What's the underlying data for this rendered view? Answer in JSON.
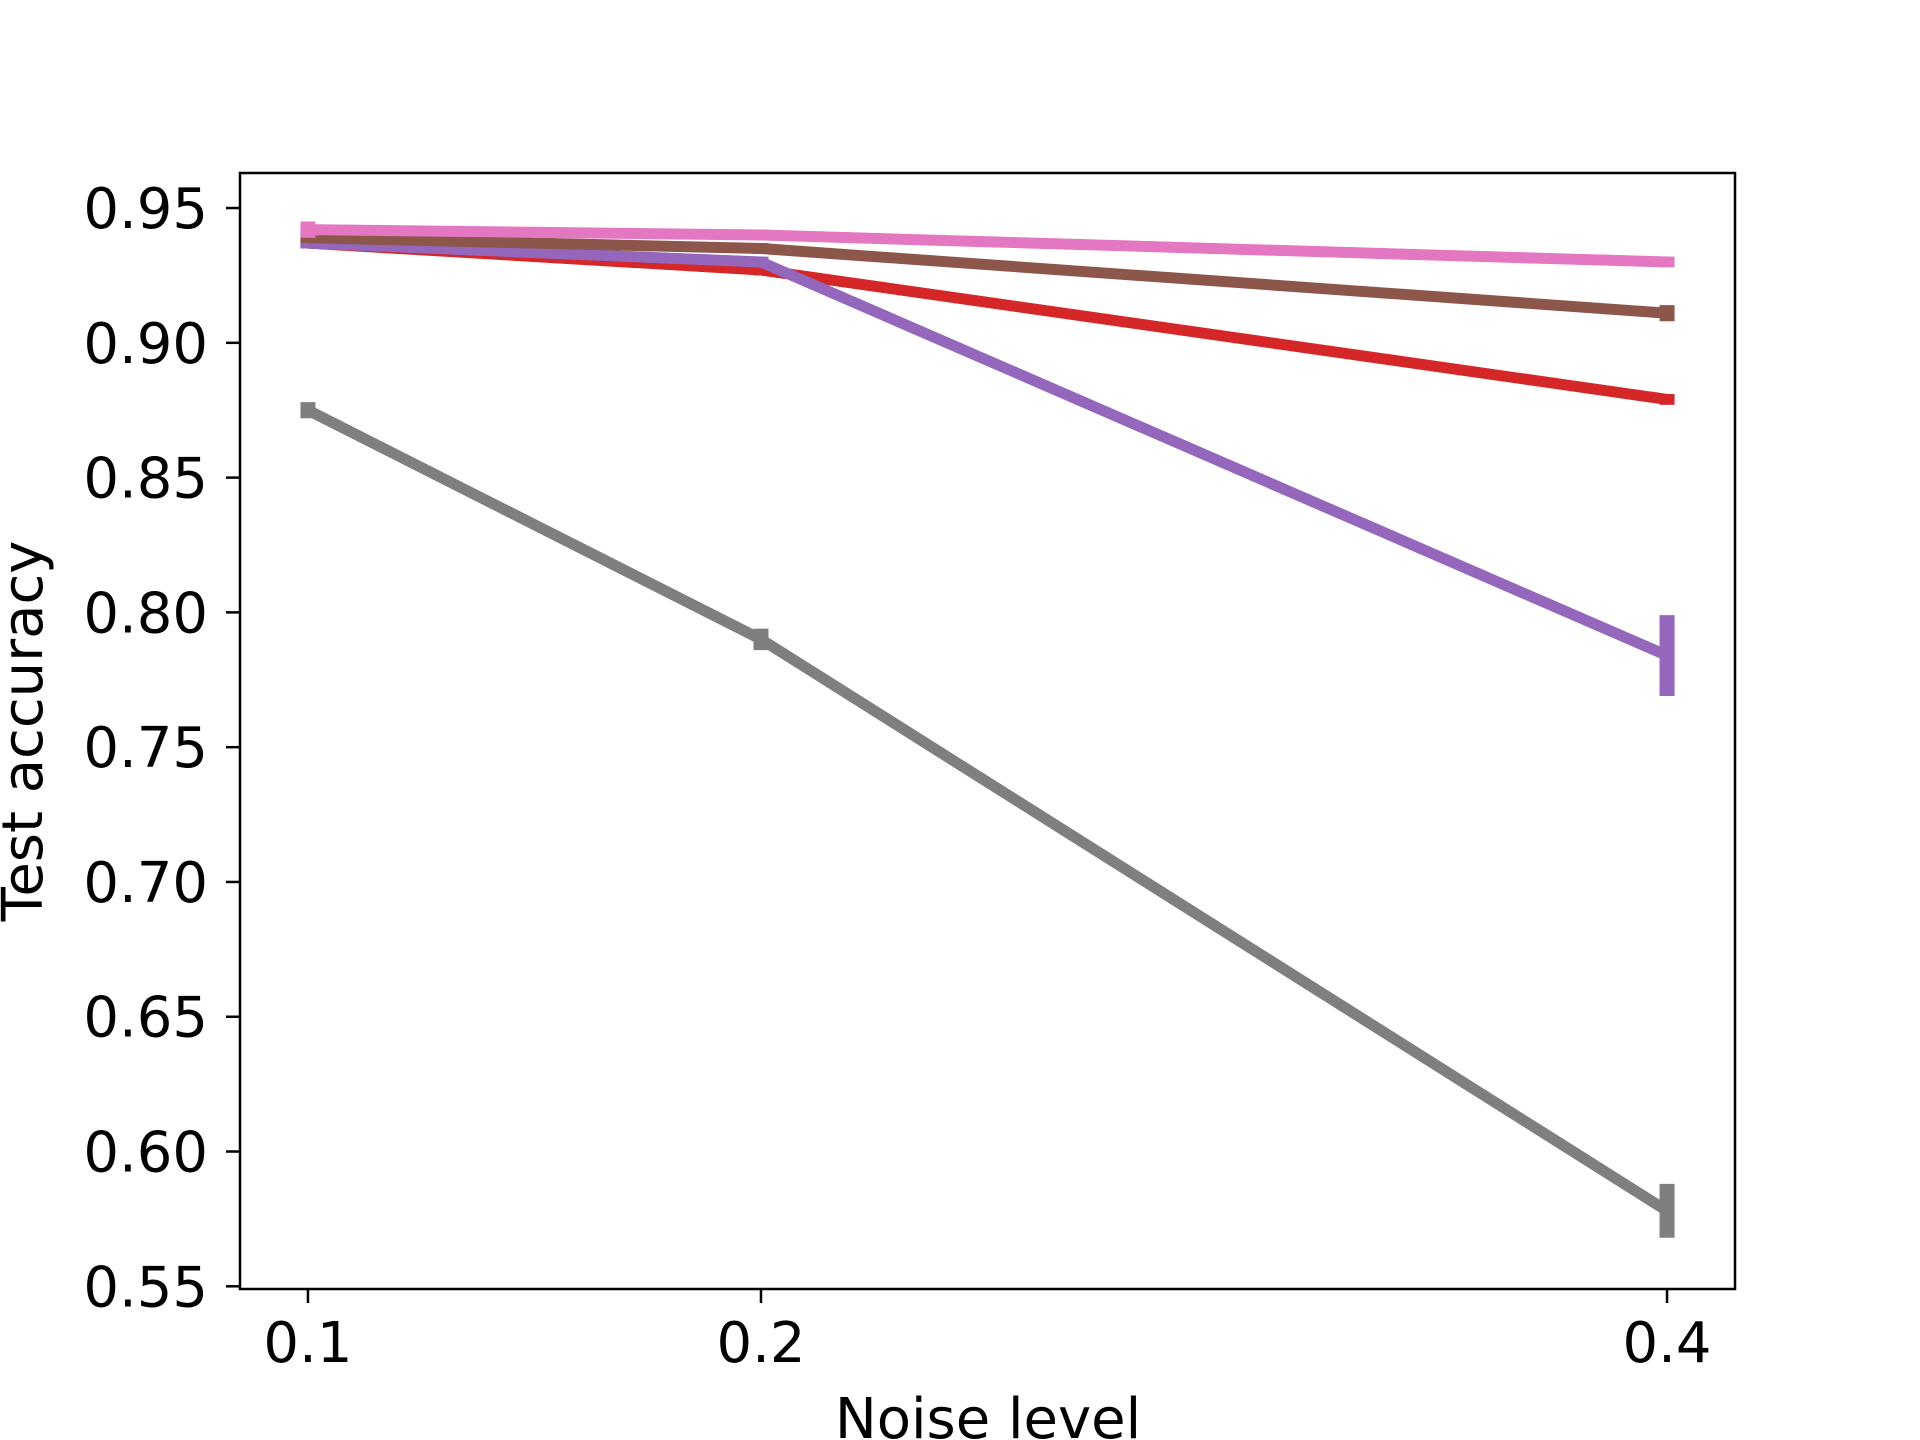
{
  "chart_data": {
    "type": "line",
    "title": "",
    "xlabel": "Noise level",
    "ylabel": "Test accuracy",
    "x": [
      0.1,
      0.2,
      0.4
    ],
    "xticks": [
      "0.1",
      "0.2",
      "0.4"
    ],
    "yticks": [
      "0.55",
      "0.60",
      "0.65",
      "0.70",
      "0.75",
      "0.80",
      "0.85",
      "0.90",
      "0.95"
    ],
    "xlim": [
      0.085,
      0.415
    ],
    "ylim": [
      0.549,
      0.963
    ],
    "grid": false,
    "legend": "none",
    "series": [
      {
        "color": "#7f7f7f",
        "values": [
          0.875,
          0.79,
          0.578
        ],
        "error": [
          0.003,
          0.004,
          0.01
        ]
      },
      {
        "color": "#d62728",
        "values": [
          0.937,
          0.927,
          0.879
        ],
        "error": [
          0.002,
          0.002,
          0.002
        ]
      },
      {
        "color": "#9467bd",
        "values": [
          0.937,
          0.93,
          0.784
        ],
        "error": [
          0.002,
          0.002,
          0.015
        ]
      },
      {
        "color": "#8c564b",
        "values": [
          0.939,
          0.935,
          0.911
        ],
        "error": [
          0.002,
          0.002,
          0.003
        ]
      },
      {
        "color": "#e377c2",
        "values": [
          0.942,
          0.94,
          0.93
        ],
        "error": [
          0.003,
          0.002,
          0.002
        ]
      }
    ]
  }
}
